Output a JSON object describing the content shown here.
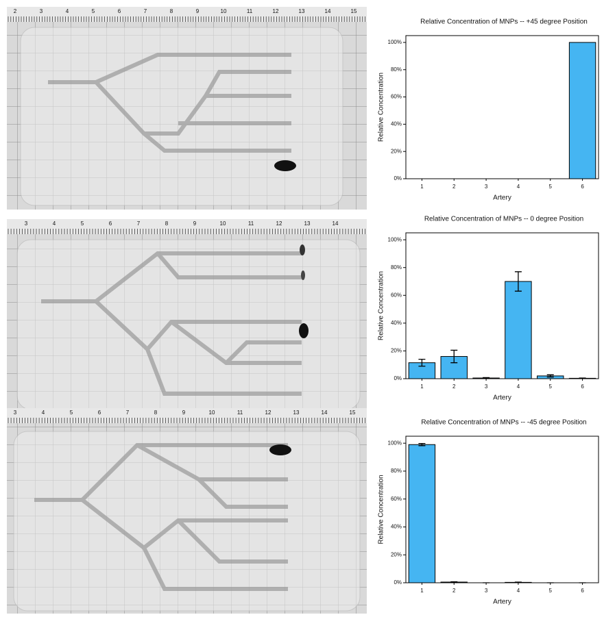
{
  "photos": [
    {
      "ruler": [
        "2",
        "3",
        "4",
        "5",
        "6",
        "7",
        "8",
        "9",
        "10",
        "11",
        "12",
        "13",
        "14",
        "15"
      ]
    },
    {
      "ruler": [
        "3",
        "4",
        "5",
        "6",
        "7",
        "8",
        "9",
        "10",
        "11",
        "12",
        "13",
        "14"
      ]
    },
    {
      "ruler": [
        "3",
        "4",
        "5",
        "6",
        "7",
        "8",
        "9",
        "10",
        "11",
        "12",
        "13",
        "14",
        "15"
      ]
    }
  ],
  "chart_data": [
    {
      "type": "bar",
      "title": "Relative Concentration of MNPs -- +45 degree Position",
      "x_label": "Artery",
      "y_label": "Relative Concentration",
      "categories": [
        "1",
        "2",
        "3",
        "4",
        "5",
        "6"
      ],
      "values": [
        0,
        0,
        0,
        0,
        0,
        100
      ],
      "color": "#45b5f2",
      "ylim": [
        0,
        105
      ],
      "yticks": [
        {
          "value": 0,
          "label": "0%"
        },
        {
          "value": 20,
          "label": "20%"
        },
        {
          "value": 40,
          "label": "40%"
        },
        {
          "value": 60,
          "label": "60%"
        },
        {
          "value": 80,
          "label": "80%"
        },
        {
          "value": 100,
          "label": "100%"
        }
      ]
    },
    {
      "type": "bar",
      "title": "Relative Concentration of MNPs -- 0 degree Position",
      "x_label": "Artery",
      "y_label": "Relative Concentration",
      "categories": [
        "1",
        "2",
        "3",
        "4",
        "5",
        "6"
      ],
      "values": [
        11.5,
        16,
        0.5,
        70,
        2,
        0.3
      ],
      "errors": [
        2.5,
        4.5,
        0.3,
        7,
        0.8,
        0.2
      ],
      "color": "#45b5f2",
      "ylim": [
        0,
        105
      ],
      "yticks": [
        {
          "value": 0,
          "label": "0%"
        },
        {
          "value": 20,
          "label": "20%"
        },
        {
          "value": 40,
          "label": "40%"
        },
        {
          "value": 60,
          "label": "60%"
        },
        {
          "value": 80,
          "label": "80%"
        },
        {
          "value": 100,
          "label": "100%"
        }
      ]
    },
    {
      "type": "bar",
      "title": "Relative Concentration of MNPs -- -45 degree Position",
      "x_label": "Artery",
      "y_label": "Relative Concentration",
      "categories": [
        "1",
        "2",
        "3",
        "4",
        "5",
        "6"
      ],
      "values": [
        99,
        0.5,
        0,
        0.3,
        0,
        0
      ],
      "errors": [
        0.8,
        0.2,
        0,
        0.2,
        0,
        0
      ],
      "color": "#45b5f2",
      "ylim": [
        0,
        105
      ],
      "yticks": [
        {
          "value": 0,
          "label": "0%"
        },
        {
          "value": 20,
          "label": "20%"
        },
        {
          "value": 40,
          "label": "40%"
        },
        {
          "value": 60,
          "label": "60%"
        },
        {
          "value": 80,
          "label": "80%"
        },
        {
          "value": 100,
          "label": "100%"
        }
      ]
    }
  ]
}
